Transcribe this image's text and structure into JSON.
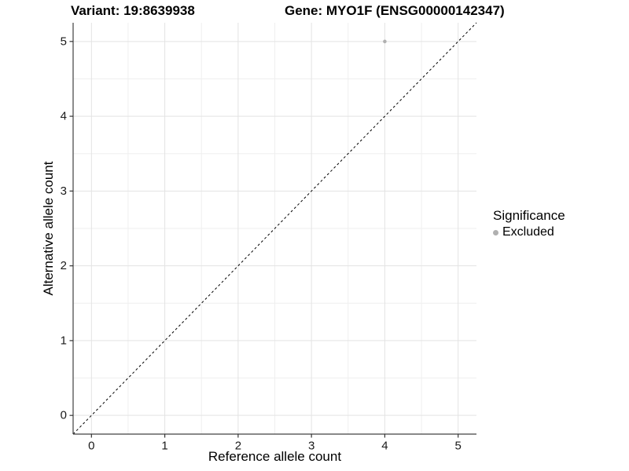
{
  "header": {
    "variant_title": "Variant: 19:8639938",
    "gene_title": "Gene: MYO1F (ENSG00000142347)"
  },
  "chart_data": {
    "type": "scatter",
    "title_left": "Variant: 19:8639938",
    "title_right": "Gene: MYO1F (ENSG00000142347)",
    "xlabel": "Reference allele count",
    "ylabel": "Alternative allele count",
    "xlim": [
      -0.25,
      5.25
    ],
    "ylim": [
      -0.25,
      5.25
    ],
    "xticks": [
      0,
      1,
      2,
      3,
      4,
      5
    ],
    "yticks": [
      0,
      1,
      2,
      3,
      4,
      5
    ],
    "minor_gridlines_x": [
      0.5,
      1.5,
      2.5,
      3.5,
      4.5
    ],
    "minor_gridlines_y": [
      0.5,
      1.5,
      2.5,
      3.5,
      4.5
    ],
    "grid": "major+minor",
    "points": [
      {
        "x": 4,
        "y": 5,
        "significance": "Excluded"
      }
    ],
    "reference_line": {
      "type": "identity",
      "style": "dashed",
      "from": [
        -0.25,
        -0.25
      ],
      "to": [
        5.25,
        5.25
      ]
    },
    "legend": {
      "title": "Significance",
      "position": "right",
      "items": [
        {
          "label": "Excluded",
          "color": "#b0b0b0"
        }
      ]
    }
  },
  "colors": {
    "background": "#ffffff",
    "point": "#b0b0b0",
    "grid_major": "#e3e3e3",
    "grid_minor": "#efefef",
    "axis_line": "#404040",
    "tick_mark": "#333333",
    "tick_label": "#1a1a1a",
    "reference_line": "#000000"
  }
}
